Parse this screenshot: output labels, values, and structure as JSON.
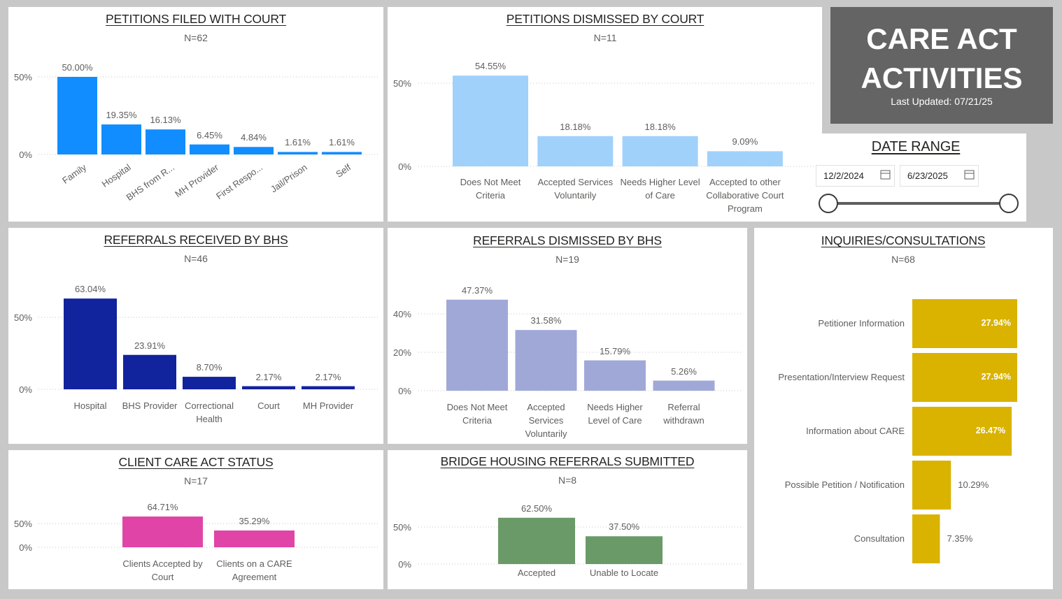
{
  "header": {
    "title": "CARE ACT ACTIVITIES",
    "updated": "Last Updated: 07/21/25"
  },
  "date_range": {
    "title": "DATE RANGE",
    "start": "12/2/2024",
    "end": "6/23/2025"
  },
  "chart_data": [
    {
      "type": "bar",
      "title": "PETITIONS FILED WITH COURT",
      "subtitle": "N=62",
      "categories": [
        "Family",
        "Hospital",
        "BHS from R...",
        "MH Provider",
        "First Respo...",
        "Jail/Prison",
        "Self"
      ],
      "values": [
        50,
        19.35,
        16.13,
        6.45,
        4.84,
        1.61,
        1.61
      ],
      "value_labels": [
        "50.00%",
        "19.35%",
        "16.13%",
        "6.45%",
        "4.84%",
        "1.61%",
        "1.61%"
      ],
      "color": "#118dff",
      "ylim": [
        0,
        50
      ],
      "yticks": [
        {
          "value": 0,
          "label": "0%"
        },
        {
          "value": 50,
          "label": "50%"
        }
      ],
      "grid": true
    },
    {
      "type": "bar",
      "title": "PETITIONS DISMISSED BY COURT",
      "subtitle": "N=11",
      "categories": [
        "Does Not Meet Criteria",
        "Accepted Services Voluntarily",
        "Needs Higher Level of Care",
        "Accepted to other Collaborative Court Program"
      ],
      "values": [
        54.55,
        18.18,
        18.18,
        9.09
      ],
      "value_labels": [
        "54.55%",
        "18.18%",
        "18.18%",
        "9.09%"
      ],
      "color": "#a0d1fb",
      "ylim": [
        0,
        50
      ],
      "yticks": [
        {
          "value": 0,
          "label": "0%"
        },
        {
          "value": 50,
          "label": "50%"
        }
      ],
      "grid": true
    },
    {
      "type": "bar",
      "title": "REFERRALS RECEIVED BY BHS",
      "subtitle": "N=46",
      "categories": [
        "Hospital",
        "BHS Provider",
        "Correctional Health",
        "Court",
        "MH Provider"
      ],
      "values": [
        63.04,
        23.91,
        8.7,
        2.17,
        2.17
      ],
      "value_labels": [
        "63.04%",
        "23.91%",
        "8.70%",
        "2.17%",
        "2.17%"
      ],
      "color": "#12239e",
      "ylim": [
        0,
        50
      ],
      "yticks": [
        {
          "value": 0,
          "label": "0%"
        },
        {
          "value": 50,
          "label": "50%"
        }
      ],
      "grid": true
    },
    {
      "type": "bar",
      "title": "REFERRALS DISMISSED BY BHS",
      "subtitle": "N=19",
      "categories": [
        "Does Not Meet Criteria",
        "Accepted Services Voluntarily",
        "Needs Higher Level of Care",
        "Referral withdrawn"
      ],
      "values": [
        47.37,
        31.58,
        15.79,
        5.26
      ],
      "value_labels": [
        "47.37%",
        "31.58%",
        "15.79%",
        "5.26%"
      ],
      "color": "#a0a8d8",
      "ylim": [
        0,
        40
      ],
      "yticks": [
        {
          "value": 0,
          "label": "0%"
        },
        {
          "value": 20,
          "label": "20%"
        },
        {
          "value": 40,
          "label": "40%"
        }
      ],
      "grid": true
    },
    {
      "type": "hbar",
      "title": "INQUIRIES/CONSULTATIONS",
      "subtitle": "N=68",
      "categories": [
        "Petitioner Information",
        "Presentation/Interview Request",
        "Information about CARE",
        "Possible Petition / Notification",
        "Consultation"
      ],
      "values": [
        27.94,
        27.94,
        26.47,
        10.29,
        7.35
      ],
      "value_labels": [
        "27.94%",
        "27.94%",
        "26.47%",
        "10.29%",
        "7.35%"
      ],
      "color": "#d9b300"
    },
    {
      "type": "bar",
      "title": "CLIENT CARE ACT STATUS",
      "subtitle": "N=17",
      "categories": [
        "Clients Accepted by Court",
        "Clients on a CARE Agreement"
      ],
      "values": [
        64.71,
        35.29
      ],
      "value_labels": [
        "64.71%",
        "35.29%"
      ],
      "color": "#e044a7",
      "ylim": [
        0,
        50
      ],
      "yticks": [
        {
          "value": 0,
          "label": "0%"
        },
        {
          "value": 50,
          "label": "50%"
        }
      ],
      "grid": true
    },
    {
      "type": "bar",
      "title": "BRIDGE HOUSING REFERRALS SUBMITTED",
      "subtitle": "N=8",
      "categories": [
        "Accepted",
        "Unable to Locate"
      ],
      "values": [
        62.5,
        37.5
      ],
      "value_labels": [
        "62.50%",
        "37.50%"
      ],
      "color": "#6a9a68",
      "ylim": [
        0,
        50
      ],
      "yticks": [
        {
          "value": 0,
          "label": "0%"
        },
        {
          "value": 50,
          "label": "50%"
        }
      ],
      "grid": true
    }
  ]
}
